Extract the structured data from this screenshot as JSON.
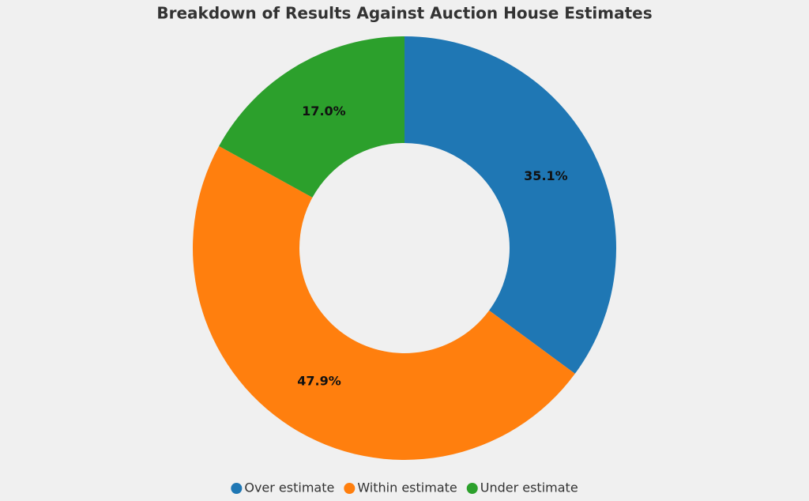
{
  "chart_data": {
    "type": "donut",
    "title": "Breakdown of Results Against Auction House Estimates",
    "categories": [
      "Over estimate",
      "Within estimate",
      "Under estimate"
    ],
    "values": [
      35.1,
      47.9,
      17.0
    ],
    "value_labels": [
      "35.1%",
      "47.9%",
      "17.0%"
    ],
    "colors": [
      "#1f77b4",
      "#ff7f0e",
      "#2ca02c"
    ],
    "legend": "bottom"
  }
}
